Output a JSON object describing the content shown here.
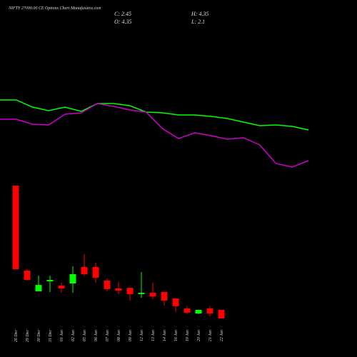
{
  "chart_data": [
    {
      "type": "line",
      "categories": [
        null,
        null,
        null,
        null,
        null,
        null,
        null,
        null,
        null,
        null,
        null,
        null,
        null,
        null,
        null,
        null,
        null,
        null,
        null,
        null
      ],
      "ylim": [
        0,
        120
      ],
      "series": [
        {
          "color": "#00ff00",
          "values": [
            100,
            100,
            90,
            85,
            90,
            84,
            95,
            95,
            92,
            83,
            82,
            79,
            79,
            77,
            74,
            69,
            64,
            65,
            63,
            58
          ]
        },
        {
          "color": "#cc00cc",
          "values": [
            73,
            73,
            66,
            65,
            80,
            82,
            95,
            91,
            86,
            83,
            60,
            46,
            54,
            50,
            45,
            47,
            37,
            11,
            6,
            15
          ]
        }
      ]
    },
    {
      "type": "candlestick",
      "title": "NIFTY 27000.00 CE Options Chart Munafasutra.com",
      "ohlc": [
        {
          "label": "C:",
          "value": 2.45
        },
        {
          "label": "H:",
          "value": 4.35
        },
        {
          "label": "O:",
          "value": 4.35
        },
        {
          "label": "L:",
          "value": 2.1
        }
      ],
      "categories": [
        "26 Dec",
        "29 Dec",
        "30 Dec",
        "31 Dec",
        "01 Jan",
        "02 Jan",
        "05 Jan",
        "06 Jan",
        "07 Jan",
        "08 Jan",
        "09 Jan",
        "12 Jan",
        "13 Jan",
        "14 Jan",
        "16 Jan",
        "19 Jan",
        "20 Jan",
        "21 Jan",
        "22 Jan"
      ],
      "open": [
        9.52,
        3.86,
        2.48,
        3.14,
        2.86,
        3.0,
        4.1,
        4.1,
        3.19,
        2.67,
        2.71,
        2.29,
        2.38,
        2.43,
        2.0,
        1.33,
        1.0,
        1.33,
        1.24
      ],
      "high": [
        9.52,
        3.95,
        3.52,
        3.52,
        3.05,
        4.14,
        4.95,
        4.38,
        3.33,
        3.1,
        2.71,
        3.76,
        3.05,
        2.43,
        2.0,
        1.48,
        1.24,
        1.48,
        1.24
      ],
      "low": [
        3.95,
        3.19,
        2.48,
        2.43,
        2.38,
        2.38,
        3.48,
        3.05,
        2.48,
        2.29,
        1.86,
        2.05,
        1.95,
        1.52,
        1.1,
        0.95,
        0.95,
        0.81,
        0.67
      ],
      "close": [
        3.95,
        3.24,
        2.9,
        3.24,
        2.67,
        3.62,
        3.62,
        3.38,
        2.62,
        2.52,
        2.29,
        2.38,
        2.14,
        1.86,
        1.48,
        1.05,
        1.24,
        1.0,
        0.67
      ],
      "up_color": "#00ff00",
      "down_color": "#ff0000",
      "ylim": [
        0,
        10
      ]
    }
  ]
}
